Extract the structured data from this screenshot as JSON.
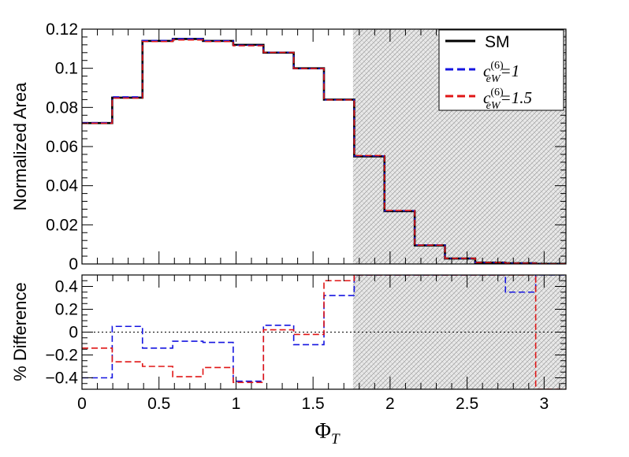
{
  "chart_data": [
    {
      "type": "line",
      "drawstyle": "steps",
      "ylabel": "Normalized Area",
      "xlim": [
        0,
        3.1416
      ],
      "ylim": [
        0,
        0.12
      ],
      "yticks": [
        0,
        0.02,
        0.04,
        0.06,
        0.08,
        0.1,
        0.12
      ],
      "ytick_labels": [
        "0",
        "0.02",
        "0.04",
        "0.06",
        "0.08",
        "0.1",
        "0.12"
      ],
      "grid": false,
      "shaded_region": {
        "x_from": 1.7593,
        "x_to": 3.1416,
        "pattern": "hatched"
      },
      "legend": {
        "position": "top-right",
        "entries": [
          {
            "label": "SM",
            "base": "SM",
            "sup": "",
            "sub": "",
            "suffix": ""
          },
          {
            "label": "c_eW^(6)=1",
            "base": "c",
            "sup": "(6)",
            "sub": "eW",
            "suffix": "=1"
          },
          {
            "label": "c_eW^(6)=1.5",
            "base": "c",
            "sup": "(6)",
            "sub": "eW",
            "suffix": "=1.5"
          }
        ]
      },
      "bin_edges": [
        0,
        0.19635,
        0.3927,
        0.58905,
        0.7854,
        0.98175,
        1.1781,
        1.37445,
        1.5708,
        1.76715,
        1.9635,
        2.15985,
        2.3562,
        2.55255,
        2.7489,
        2.94525,
        3.1416
      ],
      "series": [
        {
          "name": "SM",
          "color": "#000000",
          "style": "solid",
          "values": [
            0.072,
            0.085,
            0.114,
            0.115,
            0.114,
            0.112,
            0.108,
            0.1,
            0.084,
            0.055,
            0.027,
            0.0095,
            0.0028,
            0.0007,
            0.0004,
            0.0001
          ]
        },
        {
          "name": "c_eW^(6)=1",
          "color": "#1515e0",
          "style": "dashed",
          "values": [
            0.0722,
            0.0854,
            0.1142,
            0.1151,
            0.1141,
            0.1118,
            0.1081,
            0.0999,
            0.0839,
            0.0552,
            0.0272,
            0.0097,
            0.0029,
            0.0007,
            0.0004,
            0.0001
          ]
        },
        {
          "name": "c_eW^(6)=1.5",
          "color": "#e01515",
          "style": "dashed",
          "values": [
            0.0719,
            0.0848,
            0.1137,
            0.1145,
            0.1137,
            0.1115,
            0.1081,
            0.0999,
            0.0839,
            0.0554,
            0.0273,
            0.0096,
            0.0029,
            0.0007,
            0.0004,
            0.0001
          ]
        }
      ]
    },
    {
      "type": "line",
      "drawstyle": "steps",
      "xlabel": "Φ",
      "xlabel_sub": "T",
      "ylabel": "% Difference",
      "xlim": [
        0,
        3.1416
      ],
      "ylim": [
        -0.5,
        0.5
      ],
      "xticks": [
        0,
        0.5,
        1,
        1.5,
        2,
        2.5,
        3
      ],
      "xtick_labels": [
        "0",
        "0.5",
        "1",
        "1.5",
        "2",
        "2.5",
        "3"
      ],
      "yticks": [
        -0.4,
        -0.2,
        0,
        0.2,
        0.4
      ],
      "ytick_labels": [
        "−0.4",
        "−0.2",
        "0",
        "0.2",
        "0.4"
      ],
      "grid": false,
      "reference_line": {
        "y": 0,
        "style": "dotted"
      },
      "shaded_region": {
        "x_from": 1.7593,
        "x_to": 3.1416,
        "pattern": "hatched"
      },
      "bin_edges": [
        0,
        0.19635,
        0.3927,
        0.58905,
        0.7854,
        0.98175,
        1.1781,
        1.37445,
        1.5708,
        1.76715,
        1.9635,
        2.15985,
        2.3562,
        2.55255,
        2.7489,
        2.94525,
        3.1416
      ],
      "series": [
        {
          "name": "c_eW^(6)=1",
          "color": "#1515e0",
          "style": "dashed",
          "values": [
            -0.4,
            0.05,
            -0.14,
            -0.08,
            -0.09,
            -0.43,
            0.06,
            -0.11,
            0.32,
            0.5,
            0.5,
            0.5,
            0.5,
            0.5,
            0.35,
            0.5
          ]
        },
        {
          "name": "c_eW^(6)=1.5",
          "color": "#e01515",
          "style": "dashed",
          "values": [
            -0.14,
            -0.26,
            -0.3,
            -0.39,
            -0.31,
            -0.44,
            0.02,
            -0.02,
            0.45,
            0.5,
            0.5,
            0.5,
            0.5,
            0.5,
            0.5,
            -0.5
          ]
        }
      ]
    }
  ]
}
